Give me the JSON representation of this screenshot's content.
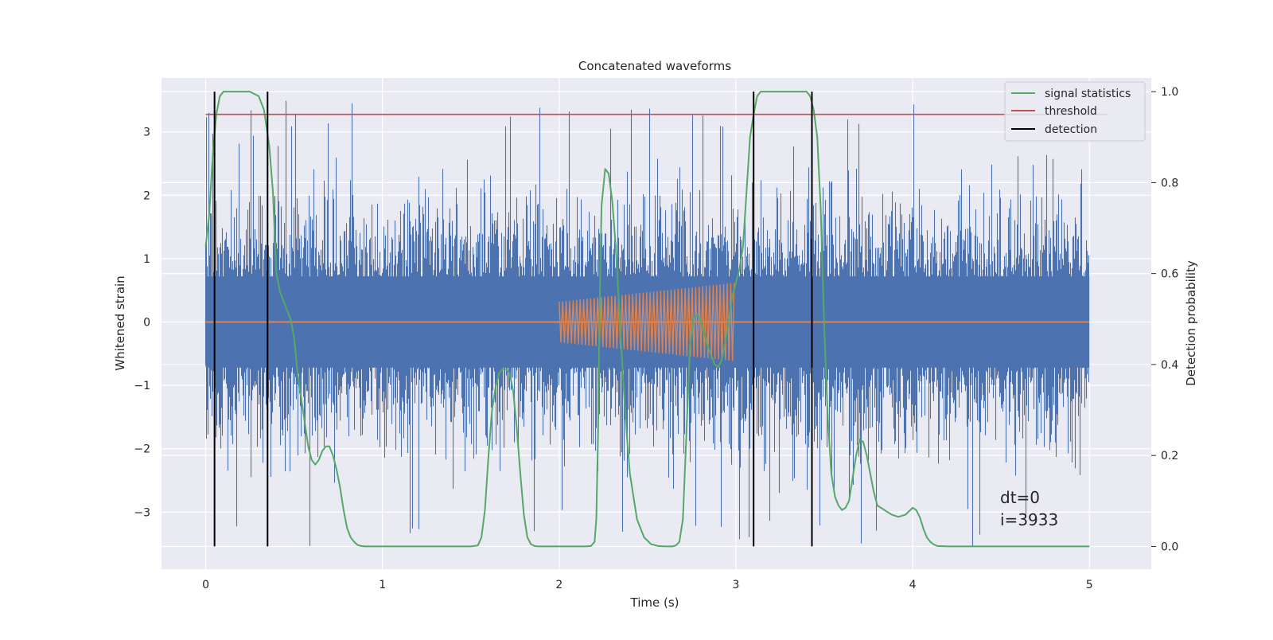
{
  "chart_data": {
    "type": "line",
    "title": "Concatenated waveforms",
    "xlabel": "Time (s)",
    "ylabel": "Whitened strain",
    "y2label": "Detection probability",
    "xlim": [
      -0.25,
      5.35
    ],
    "ylim": [
      -3.9,
      3.85
    ],
    "y2lim": [
      -0.05,
      1.03
    ],
    "xticks": [
      "0",
      "1",
      "2",
      "3",
      "4",
      "5"
    ],
    "xtick_values": [
      0,
      1,
      2,
      3,
      4,
      5
    ],
    "yticks": [
      "−3",
      "−2",
      "−1",
      "0",
      "1",
      "2",
      "3"
    ],
    "ytick_values": [
      -3,
      -2,
      -1,
      0,
      1,
      2,
      3
    ],
    "y2ticks": [
      "0.0",
      "0.2",
      "0.4",
      "0.6",
      "0.8",
      "1.0"
    ],
    "y2tick_values": [
      0.0,
      0.2,
      0.4,
      0.6,
      0.8,
      1.0
    ],
    "grid": true,
    "legend_position": "top-right",
    "annotation_lines": [
      "dt=0",
      "i=3933"
    ],
    "colors": {
      "strain": "#4c72b0",
      "injection": "#dd8452",
      "signal_statistics": "#55a868",
      "threshold": "#c44e52",
      "detection": "#000000",
      "background": "#eaeaf2",
      "grid": "#ffffff"
    },
    "strain_noise": {
      "name": "",
      "x_range": [
        0,
        5
      ],
      "typical_range": [
        -2.5,
        3.0
      ],
      "max": 3.5,
      "min": -3.6
    },
    "injection": {
      "name": "",
      "x_range": [
        2,
        3
      ],
      "amplitude_start": 0.32,
      "amplitude_end": 0.62,
      "baseline": 0
    },
    "series": [
      {
        "name": "signal statistics",
        "axis": "right",
        "x": [
          0,
          0.02,
          0.04,
          0.06,
          0.08,
          0.1,
          0.15,
          0.2,
          0.25,
          0.3,
          0.33,
          0.36,
          0.38,
          0.4,
          0.42,
          0.45,
          0.48,
          0.5,
          0.52,
          0.55,
          0.58,
          0.6,
          0.62,
          0.64,
          0.66,
          0.68,
          0.7,
          0.72,
          0.74,
          0.76,
          0.78,
          0.8,
          0.82,
          0.84,
          0.86,
          0.88,
          0.9,
          1.0,
          1.2,
          1.4,
          1.5,
          1.54,
          1.56,
          1.58,
          1.6,
          1.62,
          1.64,
          1.66,
          1.68,
          1.7,
          1.72,
          1.74,
          1.76,
          1.78,
          1.8,
          1.82,
          1.84,
          1.86,
          1.88,
          1.9,
          2.0,
          2.1,
          2.15,
          2.18,
          2.2,
          2.21,
          2.22,
          2.23,
          2.24,
          2.26,
          2.28,
          2.3,
          2.32,
          2.34,
          2.36,
          2.38,
          2.4,
          2.44,
          2.48,
          2.52,
          2.56,
          2.6,
          2.64,
          2.66,
          2.68,
          2.7,
          2.72,
          2.74,
          2.76,
          2.78,
          2.8,
          2.82,
          2.84,
          2.86,
          2.88,
          2.9,
          2.92,
          2.94,
          2.96,
          2.98,
          3.0,
          3.02,
          3.04,
          3.06,
          3.08,
          3.1,
          3.12,
          3.14,
          3.18,
          3.2,
          3.3,
          3.36,
          3.4,
          3.42,
          3.44,
          3.46,
          3.48,
          3.5,
          3.52,
          3.54,
          3.56,
          3.58,
          3.6,
          3.62,
          3.64,
          3.66,
          3.68,
          3.7,
          3.72,
          3.74,
          3.76,
          3.78,
          3.8,
          3.84,
          3.88,
          3.92,
          3.96,
          4.0,
          4.02,
          4.04,
          4.06,
          4.08,
          4.1,
          4.12,
          4.14,
          4.2,
          4.5,
          5.0
        ],
        "values": [
          0.66,
          0.73,
          0.86,
          0.95,
          0.99,
          1.0,
          1.0,
          1.0,
          1.0,
          0.99,
          0.96,
          0.88,
          0.78,
          0.6,
          0.56,
          0.53,
          0.5,
          0.46,
          0.38,
          0.3,
          0.22,
          0.19,
          0.18,
          0.19,
          0.21,
          0.22,
          0.22,
          0.2,
          0.17,
          0.13,
          0.08,
          0.04,
          0.02,
          0.01,
          0.003,
          0.001,
          0.0,
          0.0,
          0.0,
          0.0,
          0.0,
          0.002,
          0.02,
          0.08,
          0.2,
          0.3,
          0.35,
          0.38,
          0.39,
          0.39,
          0.38,
          0.34,
          0.26,
          0.16,
          0.07,
          0.02,
          0.005,
          0.001,
          0.0,
          0.0,
          0.0,
          0.0,
          0.0,
          0.001,
          0.01,
          0.06,
          0.25,
          0.55,
          0.75,
          0.83,
          0.82,
          0.76,
          0.66,
          0.52,
          0.38,
          0.26,
          0.16,
          0.06,
          0.02,
          0.005,
          0.001,
          0.0,
          0.0,
          0.002,
          0.01,
          0.06,
          0.25,
          0.44,
          0.5,
          0.51,
          0.5,
          0.47,
          0.44,
          0.42,
          0.4,
          0.395,
          0.41,
          0.45,
          0.5,
          0.55,
          0.58,
          0.61,
          0.66,
          0.78,
          0.9,
          0.95,
          0.99,
          1.0,
          1.0,
          1.0,
          1.0,
          1.0,
          1.0,
          0.99,
          0.96,
          0.9,
          0.74,
          0.48,
          0.28,
          0.16,
          0.11,
          0.09,
          0.08,
          0.085,
          0.1,
          0.15,
          0.2,
          0.235,
          0.23,
          0.2,
          0.16,
          0.12,
          0.09,
          0.08,
          0.07,
          0.065,
          0.07,
          0.085,
          0.08,
          0.065,
          0.04,
          0.02,
          0.01,
          0.004,
          0.001,
          0.0,
          0.0,
          0.0
        ]
      },
      {
        "name": "threshold",
        "axis": "right",
        "x": [
          0,
          5.1
        ],
        "values": [
          0.95,
          0.95
        ]
      }
    ],
    "detections": {
      "name": "detection",
      "x": [
        0.05,
        0.35,
        3.1,
        3.43
      ],
      "y_range": [
        0.0,
        1.0
      ]
    }
  }
}
